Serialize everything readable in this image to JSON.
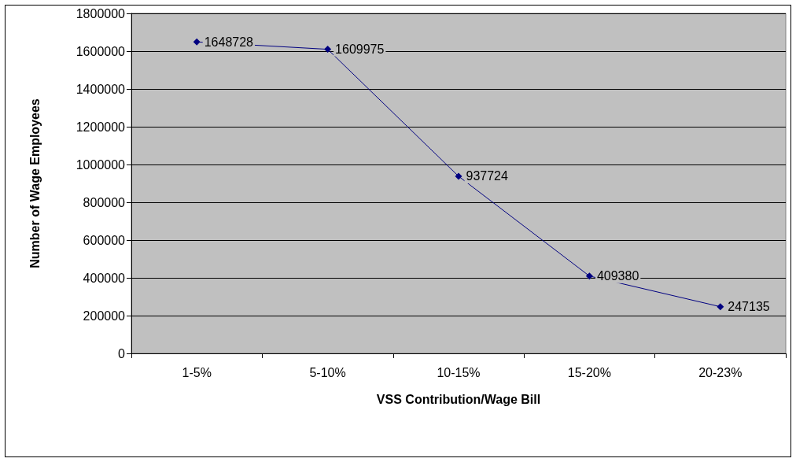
{
  "chart_data": {
    "type": "line",
    "xlabel": "VSS Contribution/Wage Bill",
    "ylabel": "Number of Wage Employees",
    "categories": [
      "1-5%",
      "5-10%",
      "10-15%",
      "15-20%",
      "20-23%"
    ],
    "series": [
      {
        "color": "#000080",
        "values": [
          1648728,
          1609975,
          937724,
          409380,
          247135
        ]
      }
    ],
    "ylim": [
      0,
      1800000
    ],
    "yticks": [
      0,
      200000,
      400000,
      600000,
      800000,
      1000000,
      1200000,
      1400000,
      1600000,
      1800000
    ],
    "grid": "y",
    "marker": "diamond",
    "line_style": "solid",
    "data_labels": true
  }
}
